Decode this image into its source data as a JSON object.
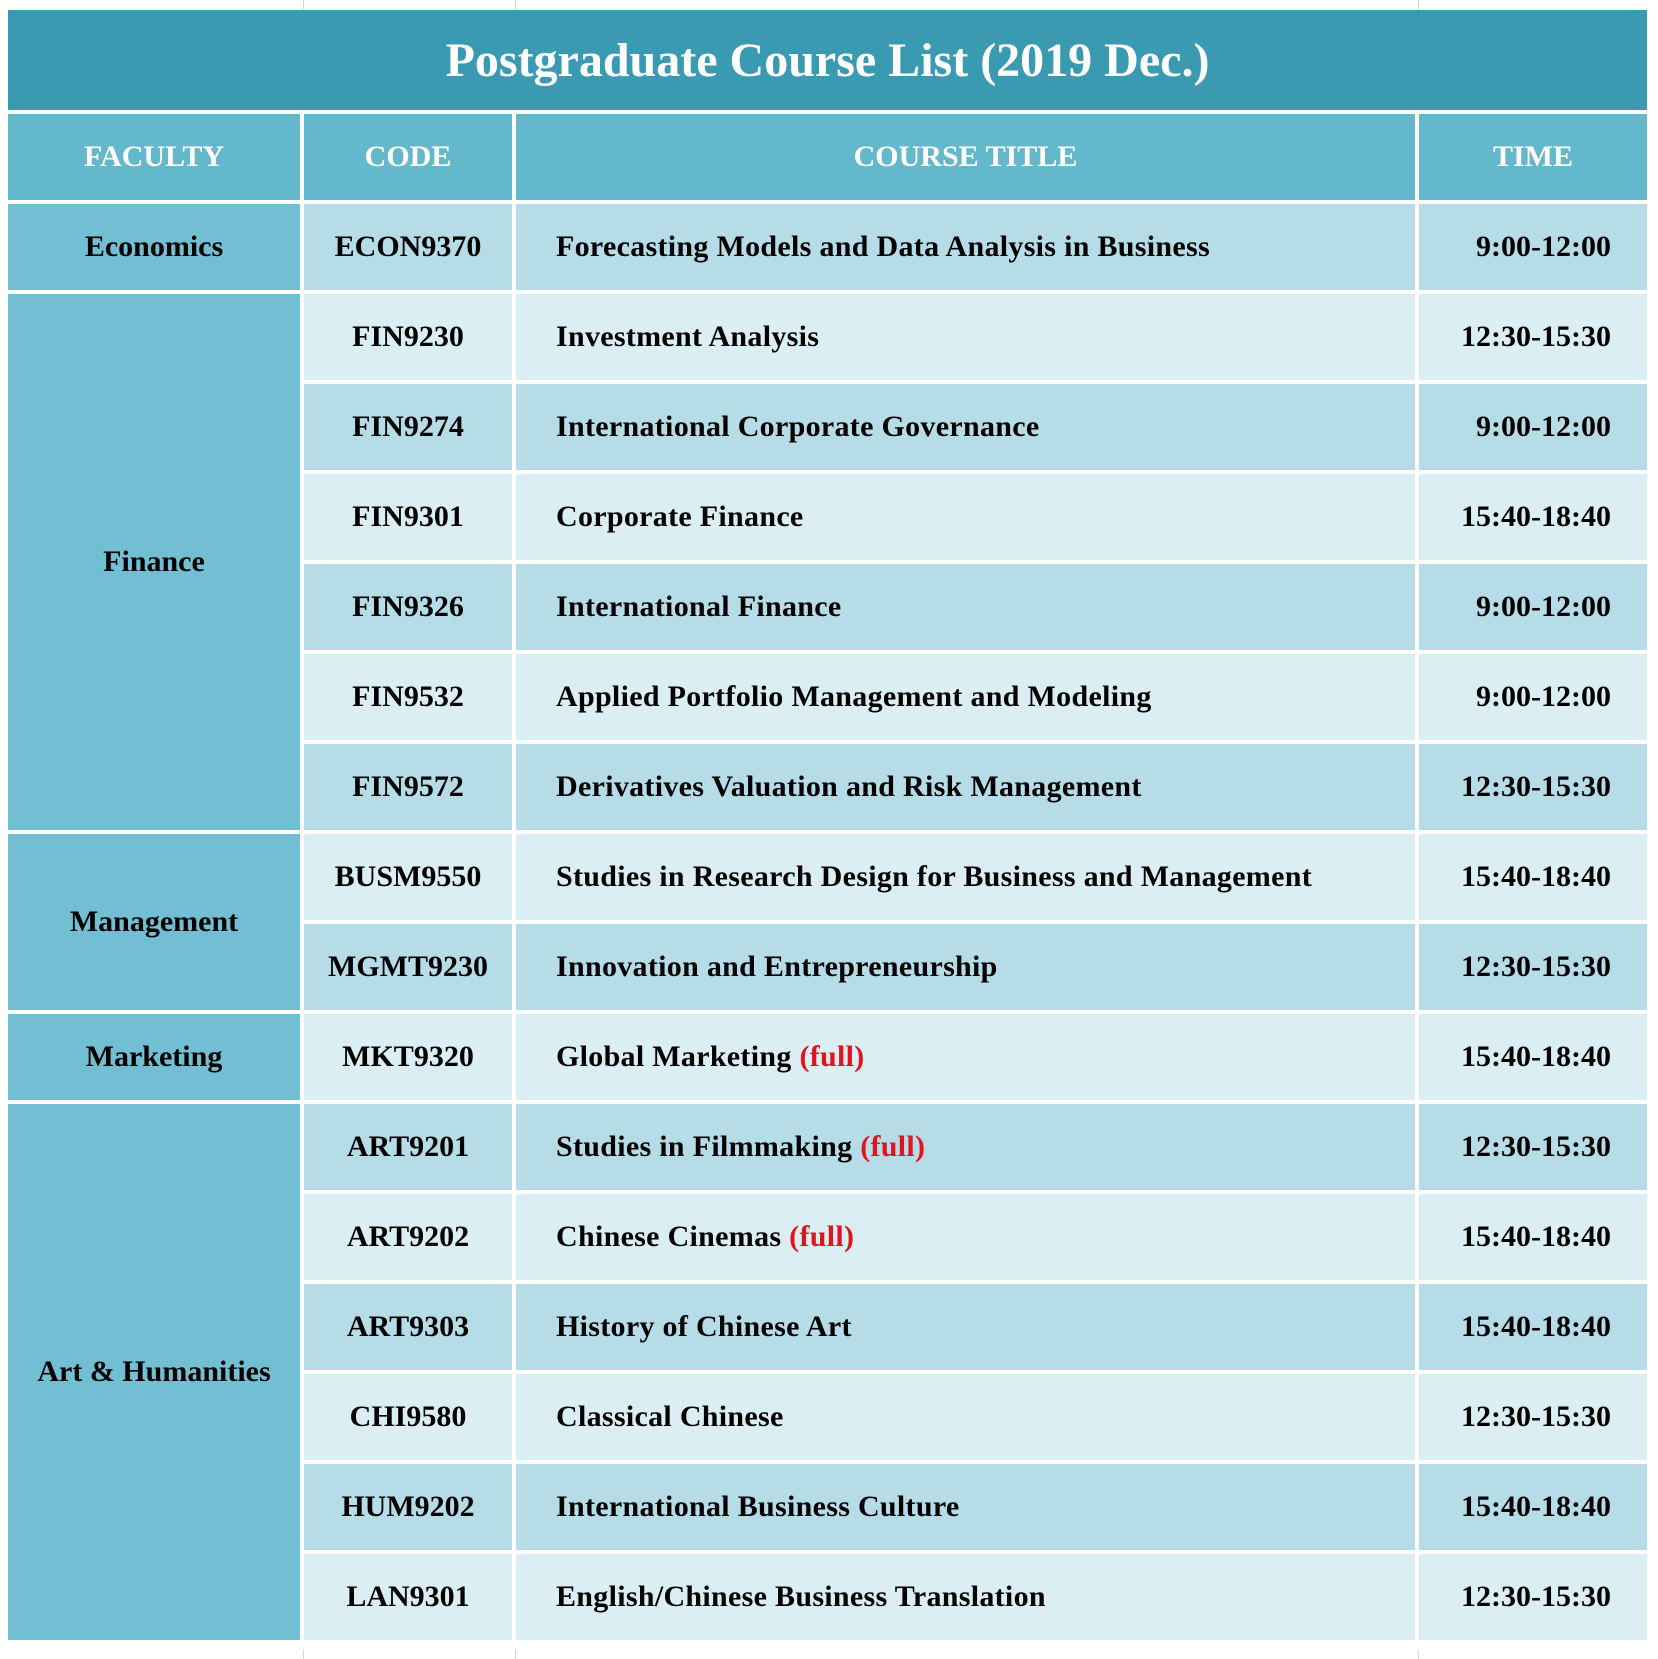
{
  "title": "Postgraduate Course List (2019 Dec.)",
  "headers": {
    "faculty": "FACULTY",
    "code": "CODE",
    "course_title": "COURSE TITLE",
    "time": "TIME"
  },
  "colors": {
    "title_bg": "#3a9ab2",
    "header_bg": "#64b8cc",
    "faculty_bg": "#72bed2",
    "row_dark": "#b6dce7",
    "row_light": "#daeef4",
    "full_text": "#e0141e"
  },
  "full_label": "(full)",
  "faculties": [
    {
      "name": "Economics",
      "courses": [
        {
          "code": "ECON9370",
          "title": "Forecasting Models and Data Analysis in Business",
          "time": "9:00-12:00",
          "full": false
        }
      ]
    },
    {
      "name": "Finance",
      "courses": [
        {
          "code": "FIN9230",
          "title": "Investment Analysis",
          "time": "12:30-15:30",
          "full": false
        },
        {
          "code": "FIN9274",
          "title": "International Corporate Governance",
          "time": "9:00-12:00",
          "full": false
        },
        {
          "code": "FIN9301",
          "title": "Corporate Finance",
          "time": "15:40-18:40",
          "full": false
        },
        {
          "code": "FIN9326",
          "title": "International Finance",
          "time": "9:00-12:00",
          "full": false
        },
        {
          "code": "FIN9532",
          "title": "Applied Portfolio Management and Modeling",
          "time": "9:00-12:00",
          "full": false
        },
        {
          "code": "FIN9572",
          "title": "Derivatives Valuation and Risk Management",
          "time": "12:30-15:30",
          "full": false
        }
      ]
    },
    {
      "name": "Management",
      "courses": [
        {
          "code": "BUSM9550",
          "title": "Studies in Research Design for Business and Management",
          "time": "15:40-18:40",
          "full": false
        },
        {
          "code": "MGMT9230",
          "title": "Innovation and Entrepreneurship",
          "time": "12:30-15:30",
          "full": false
        }
      ]
    },
    {
      "name": "Marketing",
      "courses": [
        {
          "code": "MKT9320",
          "title": "Global Marketing",
          "time": "15:40-18:40",
          "full": true
        }
      ]
    },
    {
      "name": "Art & Humanities",
      "courses": [
        {
          "code": "ART9201",
          "title": "Studies in Filmmaking",
          "time": "12:30-15:30",
          "full": true
        },
        {
          "code": "ART9202",
          "title": "Chinese Cinemas",
          "time": "15:40-18:40",
          "full": true
        },
        {
          "code": "ART9303",
          "title": "History of Chinese Art",
          "time": "15:40-18:40",
          "full": false
        },
        {
          "code": "CHI9580",
          "title": "Classical Chinese",
          "time": "12:30-15:30",
          "full": false
        },
        {
          "code": "HUM9202",
          "title": "International Business Culture",
          "time": "15:40-18:40",
          "full": false
        },
        {
          "code": "LAN9301",
          "title": "English/Chinese Business Translation",
          "time": "12:30-15:30",
          "full": false
        }
      ]
    }
  ]
}
